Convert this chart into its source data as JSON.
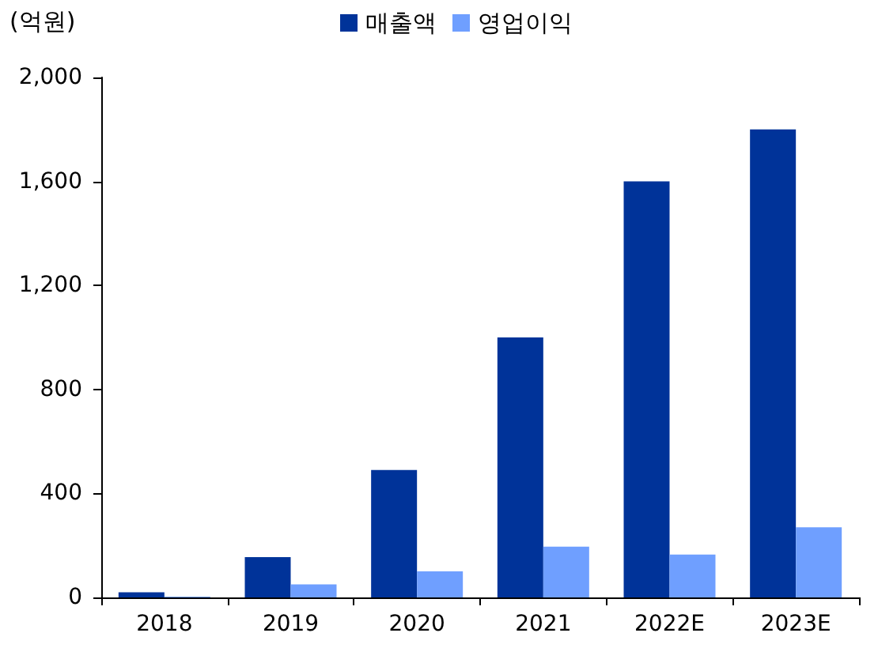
{
  "chart_data": {
    "type": "bar",
    "ylabel": "(억원)",
    "categories": [
      "2018",
      "2019",
      "2020",
      "2021",
      "2022E",
      "2023E"
    ],
    "series": [
      {
        "name": "매출액",
        "color": "#003399",
        "values": [
          20,
          155,
          490,
          1000,
          1600,
          1800
        ]
      },
      {
        "name": "영업이익",
        "color": "#6f9fff",
        "values": [
          3,
          50,
          100,
          195,
          165,
          270
        ]
      }
    ],
    "ylim": [
      0,
      2000
    ],
    "yticks": [
      0,
      {
        "value": 400,
        "label": "400"
      },
      {
        "value": 800,
        "label": "800"
      },
      {
        "value": 1200,
        "label": "1,200"
      },
      {
        "value": 1600,
        "label": "1,600"
      },
      {
        "value": 2000,
        "label": "2,000"
      }
    ],
    "grid": false,
    "legend": "top"
  }
}
